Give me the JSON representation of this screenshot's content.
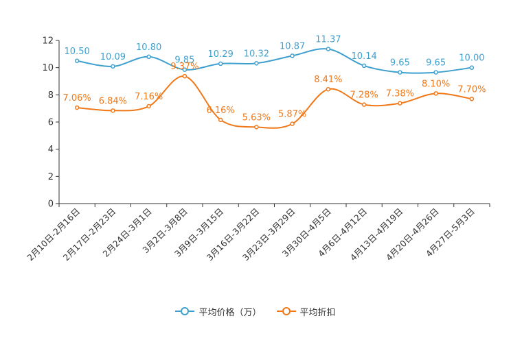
{
  "chart_data": {
    "type": "line",
    "title": "",
    "xlabel": "",
    "ylabel": "",
    "ylim": [
      0,
      12
    ],
    "yticks": [
      0,
      2,
      4,
      6,
      8,
      10,
      12
    ],
    "categories": [
      "2月10日-2月16日",
      "2月17日-2月23日",
      "2月24日-3月1日",
      "3月2日-3月8日",
      "3月9日-3月15日",
      "3月16日-3月22日",
      "3月23日-3月29日",
      "3月30日-4月5日",
      "4月6日-4月12日",
      "4月13日-4月19日",
      "4月20日-4月26日",
      "4月27日-5月3日"
    ],
    "series": [
      {
        "name": "平均价格（万）",
        "color": "#3fa0cf",
        "values": [
          10.5,
          10.09,
          10.8,
          9.85,
          10.29,
          10.32,
          10.87,
          11.37,
          10.14,
          9.65,
          9.65,
          10.0
        ],
        "labels": [
          "10.50",
          "10.09",
          "10.80",
          "9.85",
          "10.29",
          "10.32",
          "10.87",
          "11.37",
          "10.14",
          "9.65",
          "9.65",
          "10.00"
        ]
      },
      {
        "name": "平均折扣",
        "color": "#f07818",
        "values": [
          7.06,
          6.84,
          7.16,
          9.37,
          6.16,
          5.63,
          5.87,
          8.41,
          7.28,
          7.38,
          8.1,
          7.7
        ],
        "labels": [
          "7.06%",
          "6.84%",
          "7.16%",
          "9.37%",
          "6.16%",
          "5.63%",
          "5.87%",
          "8.41%",
          "7.28%",
          "7.38%",
          "8.10%",
          "7.70%"
        ]
      }
    ],
    "legend": "bottom-center",
    "grid": false
  }
}
